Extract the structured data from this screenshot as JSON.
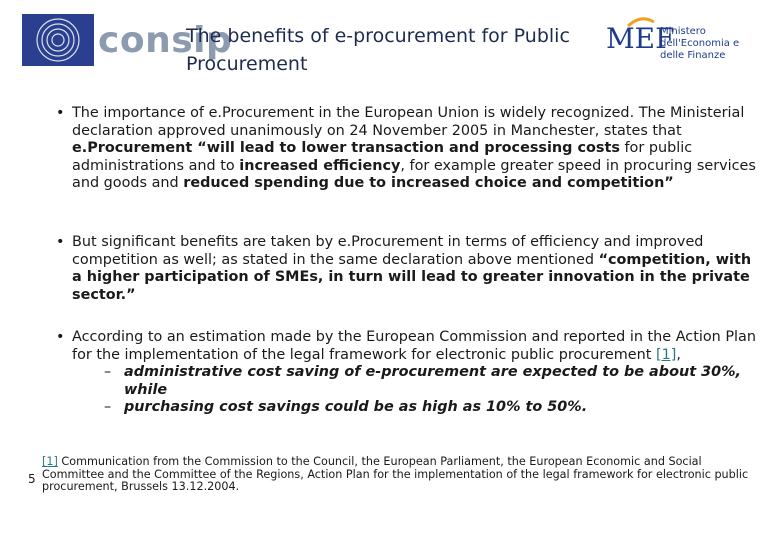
{
  "header": {
    "logo_text": "consip",
    "title": "The benefits of e-procurement for Public Procurement",
    "mef_logo": "MEF",
    "mef_text": "Ministero dell'Economia e delle Finanze"
  },
  "bullets": [
    {
      "segments": [
        "The importance of e.Procurement in the European Union is widely recognized. The Ministerial declaration approved unanimously on 24 November 2005 in Manchester, states that ",
        "e.Procurement “will lead to lower transaction and processing costs",
        " for public administrations and to ",
        "increased efficiency",
        ", for example greater speed in procuring services and goods and ",
        "reduced spending due to increased choice and competition”"
      ]
    },
    {
      "segments": [
        "But significant benefits are taken by e.Procurement in terms of efficiency and improved competition as well; as stated in the same declaration above mentioned ",
        "“competition, with a higher participation of SMEs, in turn will lead to greater innovation in the private sector.”"
      ]
    },
    {
      "segments": [
        "According to an estimation made by the European Commission and reported in the Action Plan for the implementation of the legal framework for electronic public procurement ",
        "[1]",
        ","
      ],
      "subitems": [
        "administrative cost saving of e-procurement are expected to be about 30%, while",
        "purchasing cost savings could be as high as 10% to 50%."
      ]
    }
  ],
  "footnote": {
    "ref": "[1]",
    "text": " Communication from the Commission to the Council, the European Parliament, the European Economic and Social Committee and the Committee of the Regions, Action Plan for the implementation of the legal framework for electronic public procurement, Brussels 13.12.2004."
  },
  "page_number": "5"
}
